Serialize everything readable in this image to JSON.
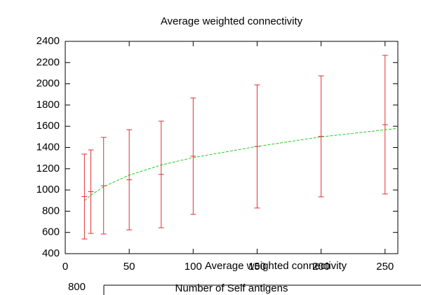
{
  "chart_data": {
    "type": "errorbar",
    "title": "Average weighted connectivity",
    "xlabel": "Number of Self antigens",
    "xlim": [
      0,
      260
    ],
    "xticks": [
      0,
      50,
      100,
      150,
      200,
      250
    ],
    "ylim": [
      400,
      2400
    ],
    "yticks": [
      400,
      600,
      800,
      1000,
      1200,
      1400,
      1600,
      1800,
      2000,
      2200,
      2400
    ],
    "points": {
      "color": "#e03030",
      "x": [
        15,
        20,
        30,
        50,
        75,
        100,
        150,
        200,
        250
      ],
      "values": [
        938,
        984,
        1040,
        1096,
        1146,
        1318,
        1410,
        1505,
        1615
      ],
      "errors": [
        400,
        393,
        455,
        472,
        502,
        548,
        580,
        570,
        653
      ]
    },
    "fit": {
      "color": "#22cc22",
      "x": [
        15,
        20,
        30,
        50,
        75,
        100,
        150,
        200,
        260
      ],
      "values": [
        900,
        950,
        1030,
        1140,
        1235,
        1305,
        1410,
        1500,
        1580
      ]
    },
    "overlap_title": "Average weighted connectivity",
    "overlap_ytick": "800"
  }
}
